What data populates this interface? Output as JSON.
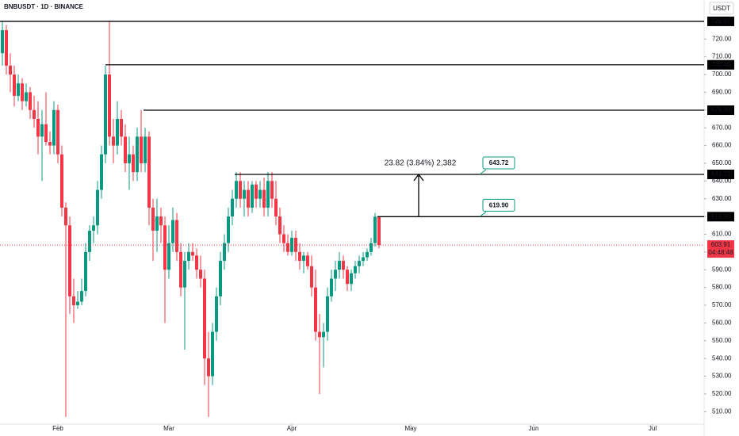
{
  "chart_data": {
    "type": "candlestick",
    "title": "BNBUSDT · 1D · BINANCE",
    "currency": "USDT",
    "open": [
      712,
      725,
      705,
      700,
      688,
      695,
      685,
      690,
      680,
      675,
      665,
      672,
      662,
      660,
      680,
      655,
      625,
      615,
      575,
      570,
      572,
      578,
      600,
      612,
      615,
      635,
      655,
      700,
      665,
      660,
      675,
      665,
      650,
      655,
      645,
      665,
      650,
      665,
      625,
      612,
      620,
      615,
      590,
      605,
      618,
      600,
      580,
      595,
      600,
      598,
      590,
      585,
      540,
      530,
      555,
      575,
      595,
      605,
      620,
      630,
      640,
      630,
      635,
      625,
      638,
      630,
      635,
      625,
      640,
      630,
      620,
      610,
      605,
      600,
      608,
      600,
      595,
      598,
      592,
      580,
      555,
      552,
      555,
      575,
      585,
      590,
      595,
      590,
      582,
      588,
      592,
      595,
      597,
      600,
      605,
      619.9
    ],
    "high": [
      730,
      728,
      712,
      705,
      700,
      698,
      695,
      693,
      688,
      685,
      680,
      690,
      668,
      685,
      683,
      660,
      628,
      620,
      585,
      578,
      585,
      605,
      615,
      620,
      640,
      660,
      705,
      730,
      675,
      685,
      680,
      672,
      665,
      660,
      670,
      680,
      670,
      668,
      630,
      630,
      625,
      620,
      615,
      625,
      622,
      605,
      600,
      605,
      605,
      602,
      598,
      590,
      555,
      560,
      580,
      600,
      610,
      625,
      635,
      645,
      645,
      640,
      640,
      640,
      640,
      640,
      642,
      645,
      645,
      640,
      625,
      615,
      610,
      612,
      612,
      605,
      600,
      600,
      598,
      590,
      565,
      560,
      580,
      590,
      595,
      600,
      598,
      592,
      590,
      595,
      598,
      600,
      602,
      608,
      622,
      620
    ],
    "low": [
      705,
      700,
      690,
      682,
      685,
      680,
      682,
      675,
      670,
      655,
      640,
      660,
      655,
      655,
      650,
      620,
      507,
      565,
      560,
      568,
      570,
      575,
      595,
      605,
      610,
      630,
      650,
      660,
      650,
      655,
      660,
      645,
      635,
      640,
      640,
      645,
      645,
      615,
      595,
      600,
      605,
      560,
      585,
      600,
      595,
      575,
      545,
      590,
      595,
      585,
      580,
      525,
      507,
      525,
      550,
      570,
      590,
      600,
      615,
      625,
      625,
      620,
      620,
      622,
      625,
      625,
      620,
      620,
      625,
      615,
      605,
      600,
      598,
      598,
      595,
      590,
      588,
      590,
      575,
      550,
      520,
      535,
      550,
      572,
      578,
      585,
      585,
      578,
      578,
      585,
      588,
      592,
      595,
      598,
      603,
      602
    ],
    "close": [
      725,
      705,
      700,
      688,
      695,
      685,
      690,
      680,
      675,
      665,
      672,
      662,
      660,
      680,
      655,
      625,
      615,
      575,
      570,
      572,
      578,
      600,
      612,
      615,
      635,
      655,
      700,
      665,
      660,
      675,
      665,
      650,
      655,
      645,
      665,
      650,
      665,
      625,
      612,
      620,
      615,
      590,
      605,
      618,
      600,
      580,
      595,
      600,
      598,
      590,
      585,
      540,
      530,
      555,
      575,
      595,
      605,
      620,
      630,
      640,
      630,
      635,
      625,
      638,
      630,
      635,
      625,
      640,
      630,
      620,
      610,
      605,
      600,
      608,
      600,
      595,
      598,
      592,
      580,
      555,
      552,
      555,
      575,
      585,
      590,
      595,
      590,
      582,
      588,
      592,
      595,
      597,
      600,
      605,
      619.9,
      603.91
    ],
    "up_color": "#089981",
    "down_color": "#f23645",
    "xlim": [
      -0.6,
      177
    ],
    "xticks": [
      {
        "value": 14,
        "label": "Feb"
      },
      {
        "value": 42,
        "label": "Mar"
      },
      {
        "value": 73,
        "label": "Apr"
      },
      {
        "value": 103,
        "label": "May"
      },
      {
        "value": 134,
        "label": "Jun"
      },
      {
        "value": 164,
        "label": "Jul"
      }
    ],
    "ylim": [
      503,
      742
    ],
    "yticks": [
      {
        "value": 510,
        "label": "510.00"
      },
      {
        "value": 520,
        "label": "520.00"
      },
      {
        "value": 530,
        "label": "530.00"
      },
      {
        "value": 540,
        "label": "540.00"
      },
      {
        "value": 550,
        "label": "550.00"
      },
      {
        "value": 560,
        "label": "560.00"
      },
      {
        "value": 570,
        "label": "570.00"
      },
      {
        "value": 580,
        "label": "580.00"
      },
      {
        "value": 590,
        "label": "590.00"
      },
      {
        "value": 600,
        "label": "600.00"
      },
      {
        "value": 610,
        "label": "610.00"
      },
      {
        "value": 620,
        "label": "620.00"
      },
      {
        "value": 630,
        "label": "630.00"
      },
      {
        "value": 640,
        "label": "640.00"
      },
      {
        "value": 650,
        "label": "650.00"
      },
      {
        "value": 660,
        "label": "660.00"
      },
      {
        "value": 670,
        "label": "670.00"
      },
      {
        "value": 680,
        "label": "680.00"
      },
      {
        "value": 690,
        "label": "690.00"
      },
      {
        "value": 700,
        "label": "700.00"
      },
      {
        "value": 710,
        "label": "710.00"
      },
      {
        "value": 720,
        "label": "720.00"
      }
    ],
    "levels": [
      729.97,
      705.48,
      {
        "value": 679.9,
        "label": "679.90"
      },
      643.72,
      {
        "value": 619.9,
        "label": "619.90"
      }
    ],
    "measure_label": "23.82 (3.84%) 2,382",
    "countdown": "04:48:48"
  }
}
